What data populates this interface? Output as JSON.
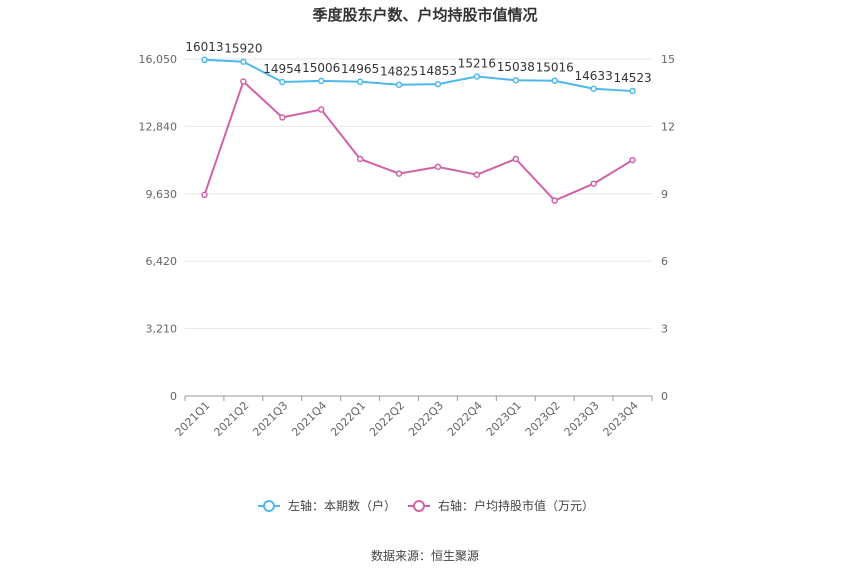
{
  "chart_data": {
    "type": "line",
    "title": "季度股东户数、户均持股市值情况",
    "categories": [
      "2021Q1",
      "2021Q2",
      "2021Q3",
      "2021Q4",
      "2022Q1",
      "2022Q2",
      "2022Q3",
      "2022Q4",
      "2023Q1",
      "2023Q2",
      "2023Q3",
      "2023Q4"
    ],
    "left_axis": {
      "ticks": [
        "0",
        "3,210",
        "6,420",
        "9,630",
        "12,840",
        "16,050"
      ],
      "ylim": [
        0,
        16050
      ]
    },
    "right_axis": {
      "ticks": [
        "0",
        "3",
        "6",
        "9",
        "12",
        "15"
      ],
      "ylim": [
        0,
        15
      ]
    },
    "series": [
      {
        "name": "左轴：本期数（户）",
        "axis": "left",
        "color": "#4db8ec",
        "values": [
          16013,
          15920,
          14954,
          15006,
          14965,
          14825,
          14853,
          15216,
          15038,
          15016,
          14633,
          14523
        ],
        "labels": [
          "16013",
          "15920",
          "14954",
          "15006",
          "14965",
          "14825",
          "14853",
          "15216",
          "15038",
          "15016",
          "14633",
          "14523"
        ]
      },
      {
        "name": "右轴：户均持股市值（万元）",
        "axis": "right",
        "color": "#d063a7",
        "values": [
          8.95,
          14.0,
          12.4,
          12.75,
          10.55,
          9.9,
          10.2,
          9.85,
          10.55,
          8.7,
          9.45,
          10.5
        ]
      }
    ],
    "grid": true,
    "legend_position": "bottom"
  },
  "source": "数据来源：恒生聚源"
}
